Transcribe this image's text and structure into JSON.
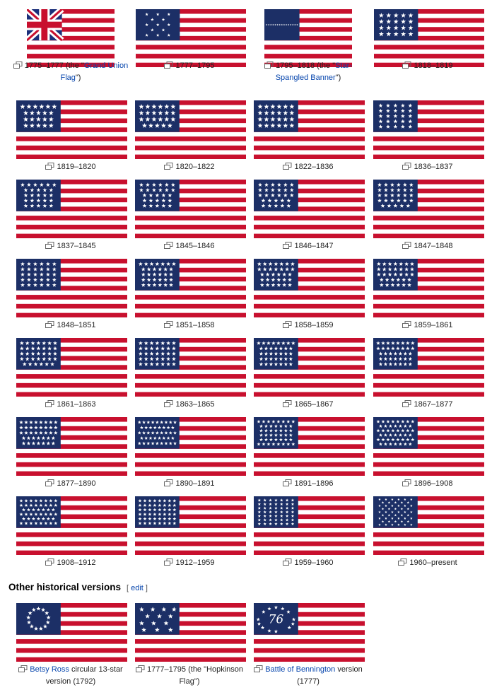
{
  "gallery": [
    {
      "caption_parts": [
        {
          "text": "1775–1777 (the \""
        },
        {
          "text": "Grand Union Flag",
          "link": true
        },
        {
          "text": "\")"
        }
      ],
      "canton": "union_jack",
      "stars": 0
    },
    {
      "caption_parts": [
        {
          "text": "1777–1795"
        }
      ],
      "canton": "stars",
      "stars": 13
    },
    {
      "caption_parts": [
        {
          "text": "1795–1818 (the \""
        },
        {
          "text": "Star-Spangled Banner",
          "link": true
        },
        {
          "text": "\")"
        }
      ],
      "canton": "stars",
      "stars": 15
    },
    {
      "caption_parts": [
        {
          "text": "1818–1819"
        }
      ],
      "canton": "stars",
      "stars": 20
    },
    {
      "caption_parts": [
        {
          "text": "1819–1820"
        }
      ],
      "canton": "stars",
      "stars": 21
    },
    {
      "caption_parts": [
        {
          "text": "1820–1822"
        }
      ],
      "canton": "stars",
      "stars": 23
    },
    {
      "caption_parts": [
        {
          "text": "1822–1836"
        }
      ],
      "canton": "stars",
      "stars": 24
    },
    {
      "caption_parts": [
        {
          "text": "1836–1837"
        }
      ],
      "canton": "stars",
      "stars": 25
    },
    {
      "caption_parts": [
        {
          "text": "1837–1845"
        }
      ],
      "canton": "stars",
      "stars": 26
    },
    {
      "caption_parts": [
        {
          "text": "1845–1846"
        }
      ],
      "canton": "stars",
      "stars": 27
    },
    {
      "caption_parts": [
        {
          "text": "1846–1847"
        }
      ],
      "canton": "stars",
      "stars": 28
    },
    {
      "caption_parts": [
        {
          "text": "1847–1848"
        }
      ],
      "canton": "stars",
      "stars": 29
    },
    {
      "caption_parts": [
        {
          "text": "1848–1851"
        }
      ],
      "canton": "stars",
      "stars": 30
    },
    {
      "caption_parts": [
        {
          "text": "1851–1858"
        }
      ],
      "canton": "stars",
      "stars": 31
    },
    {
      "caption_parts": [
        {
          "text": "1858–1859"
        }
      ],
      "canton": "stars",
      "stars": 32
    },
    {
      "caption_parts": [
        {
          "text": "1859–1861"
        }
      ],
      "canton": "stars",
      "stars": 33
    },
    {
      "caption_parts": [
        {
          "text": "1861–1863"
        }
      ],
      "canton": "stars",
      "stars": 34
    },
    {
      "caption_parts": [
        {
          "text": "1863–1865"
        }
      ],
      "canton": "stars",
      "stars": 35
    },
    {
      "caption_parts": [
        {
          "text": "1865–1867"
        }
      ],
      "canton": "stars",
      "stars": 36
    },
    {
      "caption_parts": [
        {
          "text": "1867–1877"
        }
      ],
      "canton": "stars",
      "stars": 37
    },
    {
      "caption_parts": [
        {
          "text": "1877–1890"
        }
      ],
      "canton": "stars",
      "stars": 38
    },
    {
      "caption_parts": [
        {
          "text": "1890–1891"
        }
      ],
      "canton": "stars",
      "stars": 43
    },
    {
      "caption_parts": [
        {
          "text": "1891–1896"
        }
      ],
      "canton": "stars",
      "stars": 44
    },
    {
      "caption_parts": [
        {
          "text": "1896–1908"
        }
      ],
      "canton": "stars",
      "stars": 45
    },
    {
      "caption_parts": [
        {
          "text": "1908–1912"
        }
      ],
      "canton": "stars",
      "stars": 46
    },
    {
      "caption_parts": [
        {
          "text": "1912–1959"
        }
      ],
      "canton": "stars",
      "stars": 48
    },
    {
      "caption_parts": [
        {
          "text": "1959–1960"
        }
      ],
      "canton": "stars",
      "stars": 49
    },
    {
      "caption_parts": [
        {
          "text": "1960–present"
        }
      ],
      "canton": "stars",
      "stars": 50
    }
  ],
  "section": {
    "title": "Other historical versions",
    "edit_open": "[ ",
    "edit_label": "edit",
    "edit_close": " ]"
  },
  "other": [
    {
      "caption_parts": [
        {
          "text": "Betsy Ross",
          "link": true
        },
        {
          "text": " circular 13-star version (1792)"
        }
      ],
      "canton": "circle",
      "stars": 13
    },
    {
      "caption_parts": [
        {
          "text": "1777–1795 (the \"Hopkinson Flag\")"
        }
      ],
      "canton": "hopkinson",
      "stars": 13
    },
    {
      "caption_parts": [
        {
          "text": "Battle of Bennington",
          "link": true
        },
        {
          "text": " version (1777)"
        }
      ],
      "canton": "bennington",
      "stars": 13,
      "canton_text": "76"
    }
  ],
  "colors": {
    "red": "#c8102e",
    "white": "#ffffff",
    "blue": "#1c2f66",
    "link": "#0645ad"
  }
}
